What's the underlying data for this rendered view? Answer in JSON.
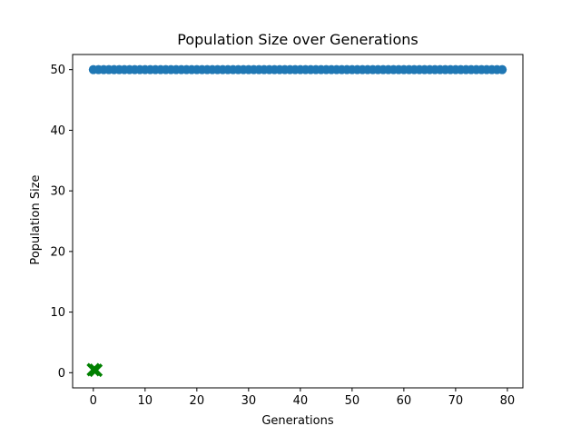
{
  "chart_data": {
    "type": "scatter",
    "title": "Population Size over Generations",
    "xlabel": "Generations",
    "ylabel": "Population Size",
    "xlim": [
      -4,
      83
    ],
    "ylim": [
      -2.5,
      52.5
    ],
    "xticks": [
      0,
      10,
      20,
      30,
      40,
      50,
      60,
      70,
      80
    ],
    "yticks": [
      0,
      10,
      20,
      30,
      40,
      50
    ],
    "xtick_labels": [
      "0",
      "10",
      "20",
      "30",
      "40",
      "50",
      "60",
      "70",
      "80"
    ],
    "ytick_labels": [
      "0",
      "10",
      "20",
      "30",
      "40",
      "50"
    ],
    "grid": false,
    "series": [
      {
        "marker": "circle",
        "color": "#1f77b4",
        "x": [
          0,
          1,
          2,
          3,
          4,
          5,
          6,
          7,
          8,
          9,
          10,
          11,
          12,
          13,
          14,
          15,
          16,
          17,
          18,
          19,
          20,
          21,
          22,
          23,
          24,
          25,
          26,
          27,
          28,
          29,
          30,
          31,
          32,
          33,
          34,
          35,
          36,
          37,
          38,
          39,
          40,
          41,
          42,
          43,
          44,
          45,
          46,
          47,
          48,
          49,
          50,
          51,
          52,
          53,
          54,
          55,
          56,
          57,
          58,
          59,
          60,
          61,
          62,
          63,
          64,
          65,
          66,
          67,
          68,
          69,
          70,
          71,
          72,
          73,
          74,
          75,
          76,
          77,
          78,
          79
        ],
        "y": [
          50,
          50,
          50,
          50,
          50,
          50,
          50,
          50,
          50,
          50,
          50,
          50,
          50,
          50,
          50,
          50,
          50,
          50,
          50,
          50,
          50,
          50,
          50,
          50,
          50,
          50,
          50,
          50,
          50,
          50,
          50,
          50,
          50,
          50,
          50,
          50,
          50,
          50,
          50,
          50,
          50,
          50,
          50,
          50,
          50,
          50,
          50,
          50,
          50,
          50,
          50,
          50,
          50,
          50,
          50,
          50,
          50,
          50,
          50,
          50,
          50,
          50,
          50,
          50,
          50,
          50,
          50,
          50,
          50,
          50,
          50,
          50,
          50,
          50,
          50,
          50,
          50,
          50,
          50,
          50
        ]
      },
      {
        "marker": "x",
        "color": "#008000",
        "x": [
          0,
          0.5
        ],
        "y": [
          0.5,
          0.4
        ]
      }
    ]
  }
}
